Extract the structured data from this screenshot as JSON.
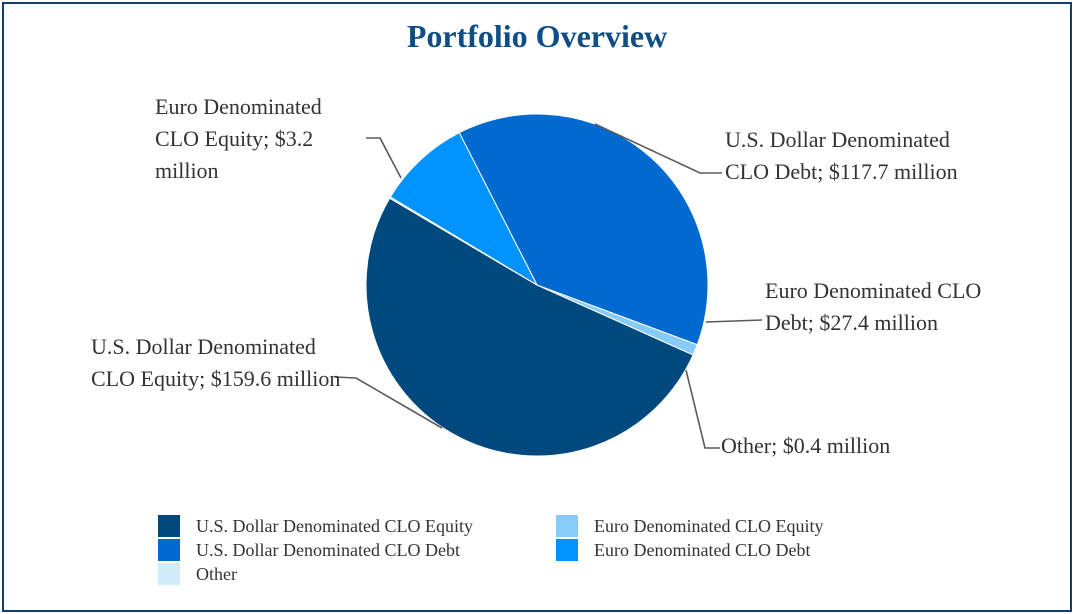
{
  "chart_data": {
    "type": "pie",
    "title": "Portfolio Overview",
    "unit": "million",
    "slices": [
      {
        "name": "U.S. Dollar Denominated CLO Equity",
        "value": 159.6,
        "color": "#00497f",
        "label": "U.S. Dollar Denominated CLO Equity; $159.6 million"
      },
      {
        "name": "Euro Denominated CLO Equity",
        "value": 3.2,
        "color": "#87cbfa",
        "label": "Euro Denominated CLO Equity; $3.2 million"
      },
      {
        "name": "U.S. Dollar Denominated CLO Debt",
        "value": 117.7,
        "color": "#006ad1",
        "label": "U.S. Dollar Denominated CLO Debt; $117.7 million"
      },
      {
        "name": "Euro Denominated CLO Debt",
        "value": 27.4,
        "color": "#0093ff",
        "label": "Euro Denominated CLO Debt; $27.4 million"
      },
      {
        "name": "Other",
        "value": 0.4,
        "color": "#d2ecfd",
        "label": "Other; $0.4 million"
      }
    ],
    "legend_position": "bottom"
  }
}
